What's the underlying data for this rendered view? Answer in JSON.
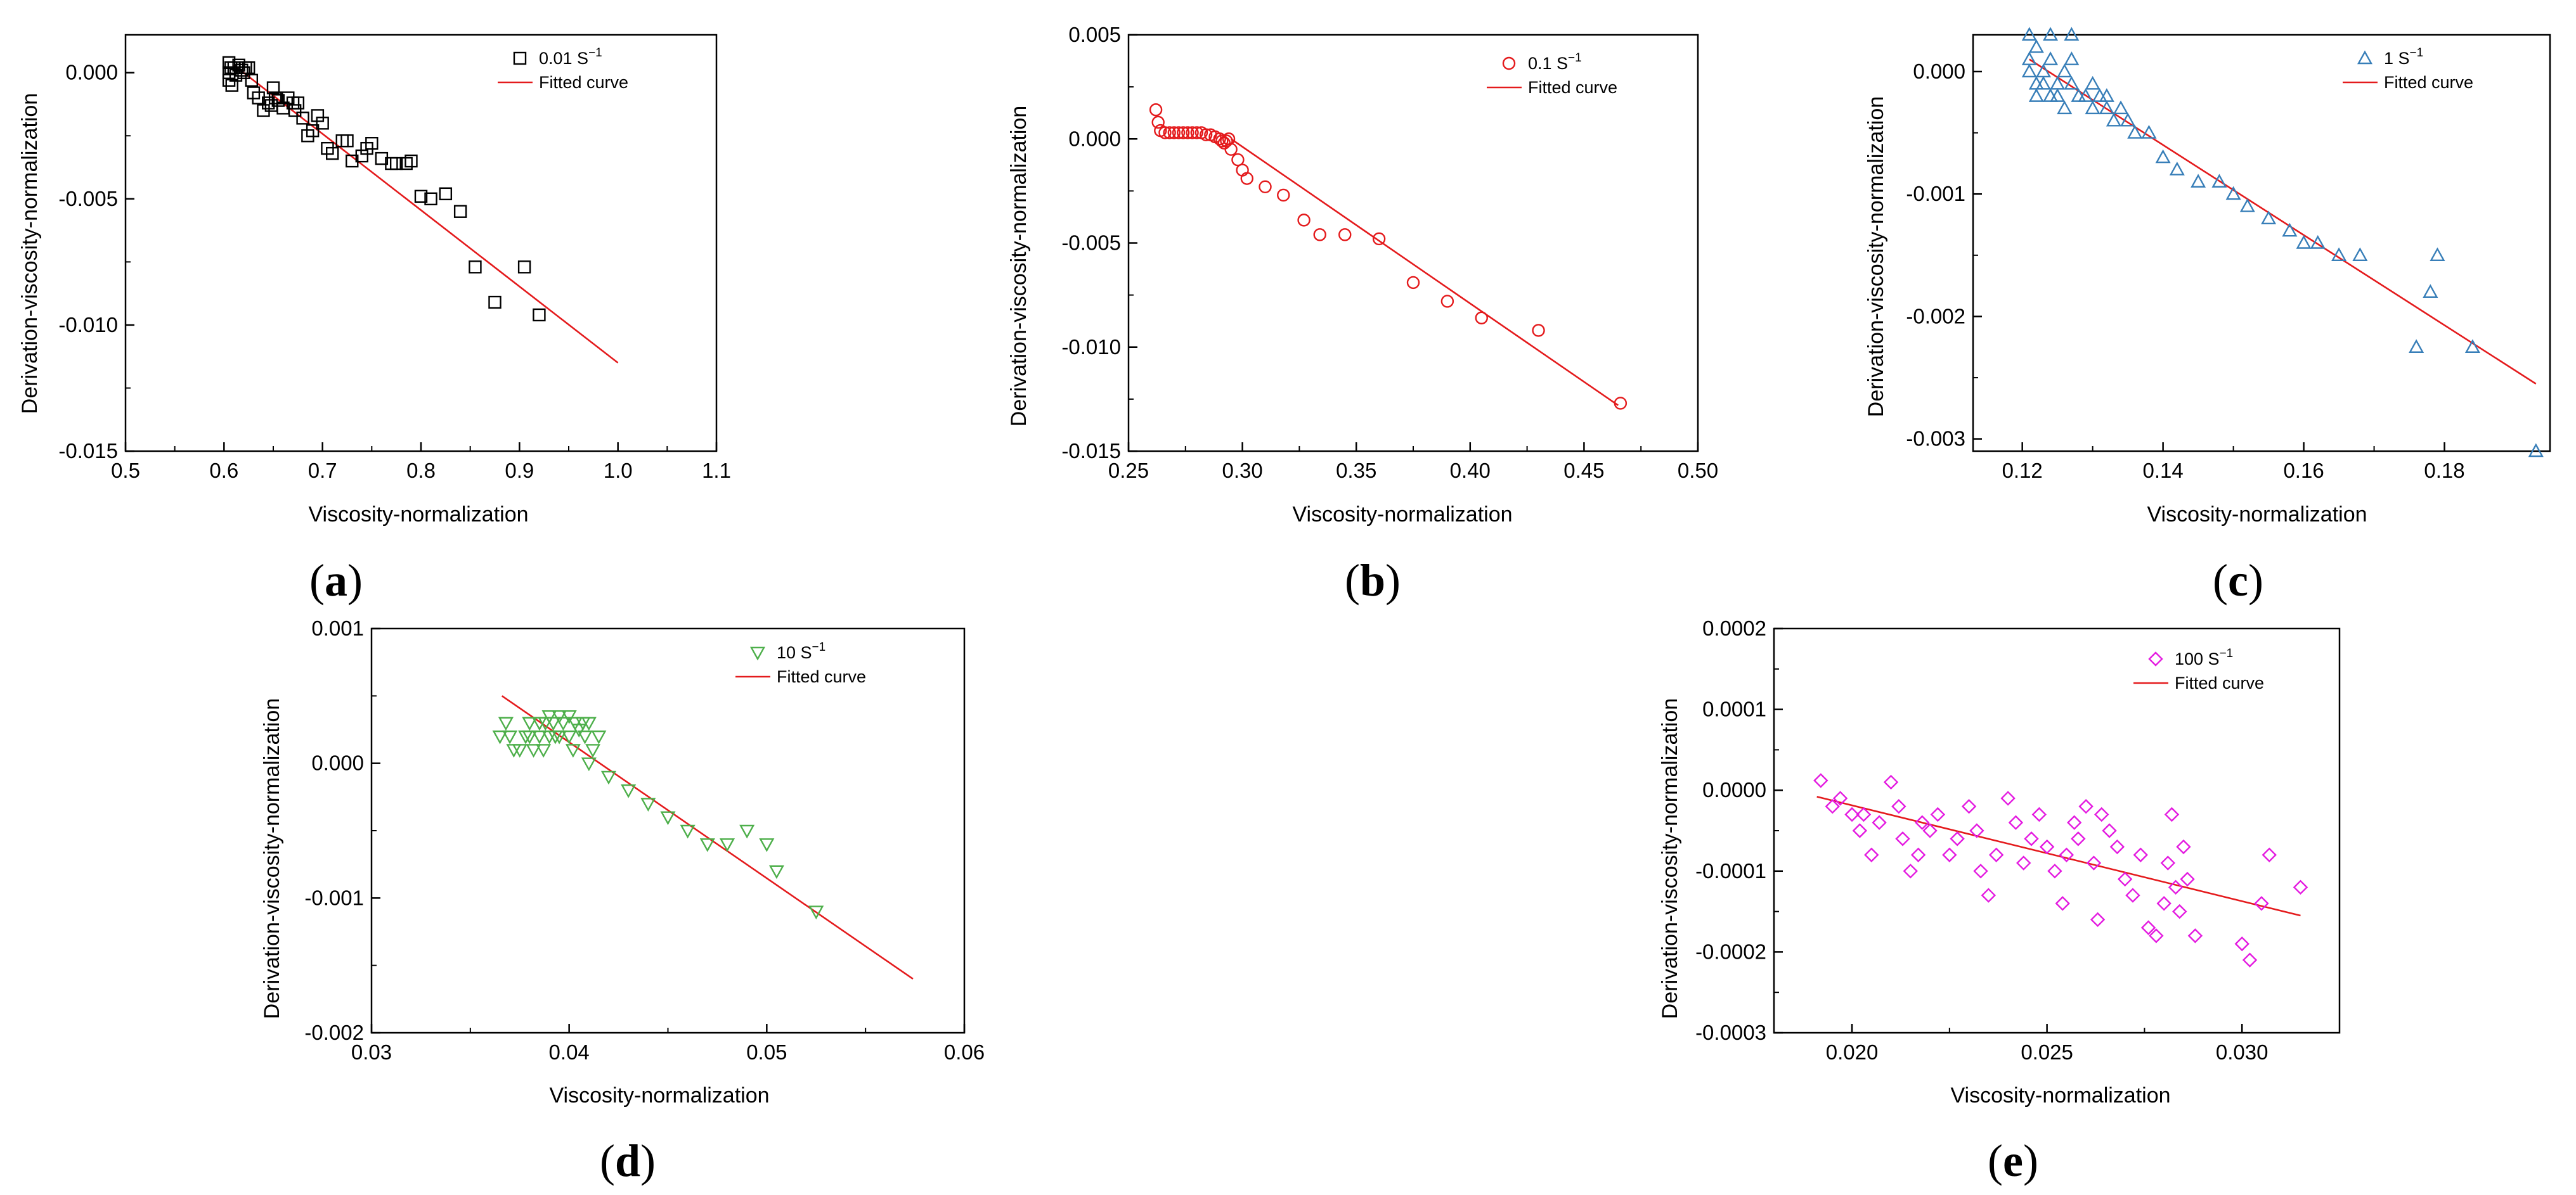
{
  "chart_data": [
    {
      "panel": "a",
      "type": "scatter",
      "xlabel": "Viscosity-normalization",
      "ylabel": "Derivation-viscosity-normalization",
      "xlim": [
        0.5,
        1.1
      ],
      "ylim": [
        -0.015,
        0.0015
      ],
      "xticks": [
        0.5,
        0.6,
        0.7,
        0.8,
        0.9,
        1.0,
        1.1
      ],
      "xtick_labels": [
        "0.5",
        "0.6",
        "0.7",
        "0.8",
        "0.9",
        "1.0",
        "1.1"
      ],
      "yticks": [
        0.0,
        -0.005,
        -0.01,
        -0.015
      ],
      "ytick_labels": [
        "0.000",
        "-0.005",
        "-0.010",
        "-0.015"
      ],
      "marker": "square",
      "color": "#000000",
      "fit_color": "#e41a1c",
      "legend": [
        "0.01 S",
        "Fitted curve"
      ],
      "legend_unit": "−1",
      "fit": {
        "x": [
          0.61,
          1.0
        ],
        "y": [
          0.0003,
          -0.0115
        ]
      },
      "points": [
        [
          0.605,
          0.0004
        ],
        [
          0.605,
          0.0
        ],
        [
          0.605,
          -0.0003
        ],
        [
          0.607,
          0.0002
        ],
        [
          0.608,
          -0.0005
        ],
        [
          0.61,
          0.0002
        ],
        [
          0.612,
          -0.0001
        ],
        [
          0.615,
          0.0003
        ],
        [
          0.618,
          0.0001
        ],
        [
          0.62,
          0.0
        ],
        [
          0.622,
          0.0002
        ],
        [
          0.625,
          0.0002
        ],
        [
          0.628,
          -0.0003
        ],
        [
          0.63,
          -0.0008
        ],
        [
          0.635,
          -0.001
        ],
        [
          0.64,
          -0.0015
        ],
        [
          0.645,
          -0.0012
        ],
        [
          0.648,
          -0.0013
        ],
        [
          0.65,
          -0.0006
        ],
        [
          0.652,
          -0.001
        ],
        [
          0.655,
          -0.0011
        ],
        [
          0.66,
          -0.0014
        ],
        [
          0.665,
          -0.001
        ],
        [
          0.67,
          -0.0012
        ],
        [
          0.672,
          -0.0015
        ],
        [
          0.675,
          -0.0012
        ],
        [
          0.68,
          -0.0018
        ],
        [
          0.685,
          -0.0025
        ],
        [
          0.69,
          -0.0023
        ],
        [
          0.695,
          -0.0017
        ],
        [
          0.7,
          -0.002
        ],
        [
          0.705,
          -0.003
        ],
        [
          0.71,
          -0.0032
        ],
        [
          0.72,
          -0.0027
        ],
        [
          0.725,
          -0.0027
        ],
        [
          0.73,
          -0.0035
        ],
        [
          0.74,
          -0.0033
        ],
        [
          0.745,
          -0.003
        ],
        [
          0.75,
          -0.0028
        ],
        [
          0.76,
          -0.0034
        ],
        [
          0.77,
          -0.0036
        ],
        [
          0.775,
          -0.0036
        ],
        [
          0.785,
          -0.0036
        ],
        [
          0.79,
          -0.0035
        ],
        [
          0.8,
          -0.0049
        ],
        [
          0.81,
          -0.005
        ],
        [
          0.825,
          -0.0048
        ],
        [
          0.84,
          -0.0055
        ],
        [
          0.855,
          -0.0077
        ],
        [
          0.875,
          -0.0091
        ],
        [
          0.905,
          -0.0077
        ],
        [
          0.92,
          -0.0096
        ]
      ]
    },
    {
      "panel": "b",
      "type": "scatter",
      "xlabel": "Viscosity-normalization",
      "ylabel": "Derivation-viscosity-normalization",
      "xlim": [
        0.25,
        0.5
      ],
      "ylim": [
        -0.015,
        0.005
      ],
      "xticks": [
        0.25,
        0.3,
        0.35,
        0.4,
        0.45,
        0.5
      ],
      "xtick_labels": [
        "0.25",
        "0.30",
        "0.35",
        "0.40",
        "0.45",
        "0.50"
      ],
      "yticks": [
        0.005,
        0.0,
        -0.005,
        -0.01,
        -0.015
      ],
      "ytick_labels": [
        "0.005",
        "0.000",
        "-0.005",
        "-0.010",
        "-0.015"
      ],
      "marker": "circle",
      "color": "#e41a1c",
      "fit_color": "#e41a1c",
      "legend": [
        "0.1 S",
        "Fitted curve"
      ],
      "legend_unit": "−1",
      "fit": {
        "x": [
          0.295,
          0.465
        ],
        "y": [
          0.0,
          -0.0128
        ]
      },
      "points": [
        [
          0.262,
          0.0014
        ],
        [
          0.263,
          0.0008
        ],
        [
          0.264,
          0.0004
        ],
        [
          0.266,
          0.0003
        ],
        [
          0.268,
          0.0003
        ],
        [
          0.27,
          0.0003
        ],
        [
          0.272,
          0.0003
        ],
        [
          0.274,
          0.0003
        ],
        [
          0.276,
          0.0003
        ],
        [
          0.278,
          0.0003
        ],
        [
          0.28,
          0.0003
        ],
        [
          0.282,
          0.0003
        ],
        [
          0.284,
          0.0002
        ],
        [
          0.286,
          0.0002
        ],
        [
          0.288,
          0.0001
        ],
        [
          0.29,
          0.0
        ],
        [
          0.291,
          -0.0001
        ],
        [
          0.292,
          -0.0002
        ],
        [
          0.293,
          -0.0001
        ],
        [
          0.294,
          0.0
        ],
        [
          0.295,
          -0.0005
        ],
        [
          0.298,
          -0.001
        ],
        [
          0.3,
          -0.0015
        ],
        [
          0.302,
          -0.0019
        ],
        [
          0.31,
          -0.0023
        ],
        [
          0.318,
          -0.0027
        ],
        [
          0.327,
          -0.0039
        ],
        [
          0.334,
          -0.0046
        ],
        [
          0.345,
          -0.0046
        ],
        [
          0.36,
          -0.0048
        ],
        [
          0.375,
          -0.0069
        ],
        [
          0.39,
          -0.0078
        ],
        [
          0.405,
          -0.0086
        ],
        [
          0.43,
          -0.0092
        ],
        [
          0.466,
          -0.0127
        ]
      ]
    },
    {
      "panel": "c",
      "type": "scatter",
      "xlabel": "Viscosity-normalization",
      "ylabel": "Derivation-viscosity-normalization",
      "xlim": [
        0.113,
        0.195
      ],
      "ylim": [
        -0.0031,
        0.0003
      ],
      "xticks": [
        0.12,
        0.14,
        0.16,
        0.18
      ],
      "xtick_labels": [
        "0.12",
        "0.14",
        "0.16",
        "0.18"
      ],
      "yticks": [
        0.0,
        -0.001,
        -0.002,
        -0.003
      ],
      "ytick_labels": [
        "0.000",
        "-0.001",
        "-0.002",
        "-0.003"
      ],
      "marker": "triangle-up",
      "color": "#377eb8",
      "fit_color": "#e41a1c",
      "legend": [
        "1 S",
        "Fitted curve"
      ],
      "legend_unit": "−1",
      "fit": {
        "x": [
          0.121,
          0.193
        ],
        "y": [
          0.0001,
          -0.00255
        ]
      },
      "points": [
        [
          0.121,
          0.0003
        ],
        [
          0.121,
          0.0001
        ],
        [
          0.121,
          0.0
        ],
        [
          0.122,
          -0.0001
        ],
        [
          0.122,
          -0.0002
        ],
        [
          0.122,
          0.0002
        ],
        [
          0.123,
          0.0
        ],
        [
          0.123,
          -0.0001
        ],
        [
          0.124,
          -0.0002
        ],
        [
          0.124,
          0.0001
        ],
        [
          0.124,
          0.0003
        ],
        [
          0.125,
          -0.0001
        ],
        [
          0.125,
          -0.0002
        ],
        [
          0.126,
          0.0
        ],
        [
          0.126,
          -0.0003
        ],
        [
          0.127,
          -0.0001
        ],
        [
          0.127,
          0.0001
        ],
        [
          0.127,
          0.0003
        ],
        [
          0.128,
          -0.0002
        ],
        [
          0.129,
          -0.0002
        ],
        [
          0.13,
          -0.0001
        ],
        [
          0.13,
          -0.0003
        ],
        [
          0.131,
          -0.0002
        ],
        [
          0.132,
          -0.0003
        ],
        [
          0.132,
          -0.0002
        ],
        [
          0.133,
          -0.0004
        ],
        [
          0.134,
          -0.0003
        ],
        [
          0.135,
          -0.0004
        ],
        [
          0.136,
          -0.0005
        ],
        [
          0.138,
          -0.0005
        ],
        [
          0.14,
          -0.0007
        ],
        [
          0.142,
          -0.0008
        ],
        [
          0.145,
          -0.0009
        ],
        [
          0.148,
          -0.0009
        ],
        [
          0.15,
          -0.001
        ],
        [
          0.152,
          -0.0011
        ],
        [
          0.155,
          -0.0012
        ],
        [
          0.158,
          -0.0013
        ],
        [
          0.16,
          -0.0014
        ],
        [
          0.162,
          -0.0014
        ],
        [
          0.165,
          -0.0015
        ],
        [
          0.168,
          -0.0015
        ],
        [
          0.176,
          -0.00225
        ],
        [
          0.178,
          -0.0018
        ],
        [
          0.179,
          -0.0015
        ],
        [
          0.184,
          -0.00225
        ],
        [
          0.193,
          -0.0031
        ]
      ]
    },
    {
      "panel": "d",
      "type": "scatter",
      "xlabel": "Viscosity-normalization",
      "ylabel": "Derivation-viscosity-normalization",
      "xlim": [
        0.03,
        0.06
      ],
      "ylim": [
        -0.002,
        0.001
      ],
      "xticks": [
        0.03,
        0.04,
        0.05,
        0.06
      ],
      "xtick_labels": [
        "0.03",
        "0.04",
        "0.05",
        "0.06"
      ],
      "yticks": [
        0.001,
        0.0,
        -0.001,
        -0.002
      ],
      "ytick_labels": [
        "0.001",
        "0.000",
        "-0.001",
        "-0.002"
      ],
      "marker": "triangle-down",
      "color": "#4daf4a",
      "fit_color": "#e41a1c",
      "legend": [
        "10 S",
        "Fitted curve"
      ],
      "legend_unit": "−1",
      "fit": {
        "x": [
          0.0366,
          0.0574
        ],
        "y": [
          0.0005,
          -0.0016
        ]
      },
      "points": [
        [
          0.0365,
          0.0002
        ],
        [
          0.0368,
          0.0003
        ],
        [
          0.037,
          0.0002
        ],
        [
          0.0372,
          0.0001
        ],
        [
          0.0375,
          0.0001
        ],
        [
          0.0378,
          0.0002
        ],
        [
          0.038,
          0.0003
        ],
        [
          0.038,
          0.0002
        ],
        [
          0.0382,
          0.0001
        ],
        [
          0.0385,
          0.0003
        ],
        [
          0.0385,
          0.0002
        ],
        [
          0.0387,
          0.0001
        ],
        [
          0.0388,
          0.0003
        ],
        [
          0.039,
          0.00035
        ],
        [
          0.039,
          0.0002
        ],
        [
          0.0392,
          0.0003
        ],
        [
          0.0393,
          0.0002
        ],
        [
          0.0395,
          0.00035
        ],
        [
          0.0395,
          0.0002
        ],
        [
          0.0397,
          0.0003
        ],
        [
          0.04,
          0.00035
        ],
        [
          0.04,
          0.0002
        ],
        [
          0.0402,
          0.0001
        ],
        [
          0.0403,
          0.0003
        ],
        [
          0.0405,
          0.00025
        ],
        [
          0.0407,
          0.0003
        ],
        [
          0.0408,
          0.0002
        ],
        [
          0.041,
          0.0003
        ],
        [
          0.0412,
          0.0001
        ],
        [
          0.0415,
          0.0002
        ],
        [
          0.041,
          0.0
        ],
        [
          0.042,
          -0.0001
        ],
        [
          0.043,
          -0.0002
        ],
        [
          0.044,
          -0.0003
        ],
        [
          0.045,
          -0.0004
        ],
        [
          0.046,
          -0.0005
        ],
        [
          0.047,
          -0.0006
        ],
        [
          0.048,
          -0.0006
        ],
        [
          0.049,
          -0.0005
        ],
        [
          0.05,
          -0.0006
        ],
        [
          0.0505,
          -0.0008
        ],
        [
          0.0525,
          -0.0011
        ]
      ]
    },
    {
      "panel": "e",
      "type": "scatter",
      "xlabel": "Viscosity-normalization",
      "ylabel": "Derivation-viscosity-normalization",
      "xlim": [
        0.018,
        0.0325
      ],
      "ylim": [
        -0.0003,
        0.0002
      ],
      "xticks": [
        0.02,
        0.025,
        0.03
      ],
      "xtick_labels": [
        "0.020",
        "0.025",
        "0.030"
      ],
      "yticks": [
        0.0002,
        0.0001,
        0.0,
        -0.0001,
        -0.0002,
        -0.0003
      ],
      "ytick_labels": [
        "0.0002",
        "0.0001",
        "0.0000",
        "-0.0001",
        "-0.0002",
        "-0.0003"
      ],
      "marker": "diamond",
      "color": "#e41ae0",
      "fit_color": "#e41a1c",
      "legend": [
        "100 S",
        "Fitted curve"
      ],
      "legend_unit": "−1",
      "fit": {
        "x": [
          0.0191,
          0.0315
        ],
        "y": [
          -8e-06,
          -0.000155
        ]
      },
      "points": [
        [
          0.0192,
          1.2e-05
        ],
        [
          0.0195,
          -2e-05
        ],
        [
          0.0197,
          -1e-05
        ],
        [
          0.02,
          -3e-05
        ],
        [
          0.0202,
          -5e-05
        ],
        [
          0.0203,
          -3e-05
        ],
        [
          0.0205,
          -8e-05
        ],
        [
          0.0207,
          -4e-05
        ],
        [
          0.021,
          1e-05
        ],
        [
          0.0212,
          -2e-05
        ],
        [
          0.0213,
          -6e-05
        ],
        [
          0.0215,
          -0.0001
        ],
        [
          0.0217,
          -8e-05
        ],
        [
          0.0218,
          -4e-05
        ],
        [
          0.022,
          -5e-05
        ],
        [
          0.0222,
          -3e-05
        ],
        [
          0.0225,
          -8e-05
        ],
        [
          0.0227,
          -6e-05
        ],
        [
          0.023,
          -2e-05
        ],
        [
          0.0232,
          -5e-05
        ],
        [
          0.0233,
          -0.0001
        ],
        [
          0.0235,
          -0.00013
        ],
        [
          0.0237,
          -8e-05
        ],
        [
          0.024,
          -1e-05
        ],
        [
          0.0242,
          -4e-05
        ],
        [
          0.0244,
          -9e-05
        ],
        [
          0.0246,
          -6e-05
        ],
        [
          0.0248,
          -3e-05
        ],
        [
          0.025,
          -7e-05
        ],
        [
          0.0252,
          -0.0001
        ],
        [
          0.0254,
          -0.00014
        ],
        [
          0.0255,
          -8e-05
        ],
        [
          0.0257,
          -4e-05
        ],
        [
          0.0258,
          -6e-05
        ],
        [
          0.026,
          -2e-05
        ],
        [
          0.0262,
          -9e-05
        ],
        [
          0.0263,
          -0.00016
        ],
        [
          0.0264,
          -3e-05
        ],
        [
          0.0266,
          -5e-05
        ],
        [
          0.0268,
          -7e-05
        ],
        [
          0.027,
          -0.00011
        ],
        [
          0.0272,
          -0.00013
        ],
        [
          0.0274,
          -8e-05
        ],
        [
          0.0276,
          -0.00017
        ],
        [
          0.0278,
          -0.00018
        ],
        [
          0.028,
          -0.00014
        ],
        [
          0.0281,
          -9e-05
        ],
        [
          0.0282,
          -3e-05
        ],
        [
          0.0283,
          -0.00012
        ],
        [
          0.0284,
          -0.00015
        ],
        [
          0.0285,
          -7e-05
        ],
        [
          0.0286,
          -0.00011
        ],
        [
          0.0288,
          -0.00018
        ],
        [
          0.03,
          -0.00019
        ],
        [
          0.0302,
          -0.00021
        ],
        [
          0.0305,
          -0.00014
        ],
        [
          0.0307,
          -8e-05
        ],
        [
          0.0315,
          -0.00012
        ]
      ]
    }
  ]
}
